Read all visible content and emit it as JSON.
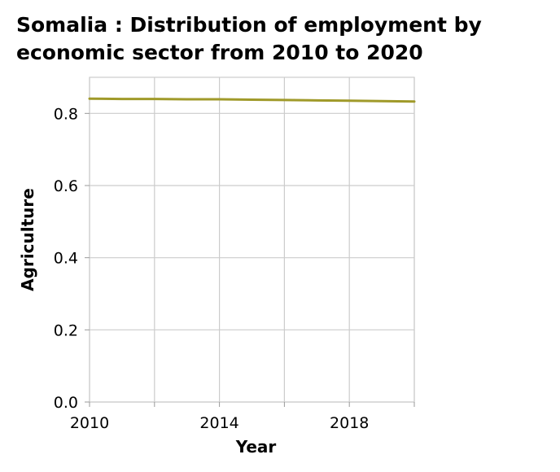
{
  "chart_data": {
    "type": "line",
    "title": "Somalia : Distribution of employment by economic sector from 2010 to 2020",
    "xlabel": "Year",
    "ylabel": "Agriculture",
    "x_ticks": [
      "2010",
      "2014",
      "2018"
    ],
    "y_ticks": [
      "0.0",
      "0.2",
      "0.4",
      "0.6",
      "0.8"
    ],
    "xlim": [
      2010,
      2020
    ],
    "ylim": [
      0,
      0.9
    ],
    "grid": true,
    "series": [
      {
        "color": "#a09a2a",
        "x": [
          2010,
          2011,
          2012,
          2013,
          2014,
          2015,
          2016,
          2017,
          2018,
          2019,
          2020
        ],
        "values": [
          0.841,
          0.84,
          0.84,
          0.839,
          0.839,
          0.838,
          0.837,
          0.836,
          0.835,
          0.834,
          0.833
        ]
      }
    ]
  }
}
